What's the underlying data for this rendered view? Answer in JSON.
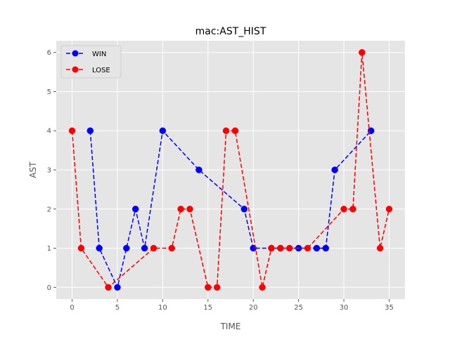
{
  "chart_data": {
    "type": "line",
    "title": "mac:AST_HIST",
    "xlabel": "TIME",
    "ylabel": "AST",
    "xlim": [
      -1.75,
      36.75
    ],
    "ylim": [
      -0.3,
      6.3
    ],
    "xticks": [
      0,
      5,
      10,
      15,
      20,
      25,
      30,
      35
    ],
    "yticks": [
      0,
      1,
      2,
      3,
      4,
      5,
      6
    ],
    "grid": true,
    "legend_position": "top-left",
    "series": [
      {
        "name": "WIN",
        "color": "#0000ff",
        "x": [
          2,
          3,
          5,
          6,
          7,
          8,
          10,
          14,
          19,
          20,
          22,
          23,
          25,
          27,
          28,
          29,
          33
        ],
        "y": [
          4,
          1,
          0,
          1,
          2,
          1,
          4,
          3,
          2,
          1,
          1,
          1,
          1,
          1,
          1,
          3,
          4
        ]
      },
      {
        "name": "LOSE",
        "color": "#ff0000",
        "x": [
          0,
          1,
          4,
          9,
          11,
          12,
          13,
          15,
          16,
          17,
          18,
          21,
          22,
          23,
          24,
          26,
          30,
          31,
          32,
          34,
          35
        ],
        "y": [
          4,
          1,
          0,
          1,
          1,
          2,
          2,
          0,
          0,
          4,
          4,
          0,
          1,
          1,
          1,
          1,
          2,
          2,
          6,
          1,
          2
        ]
      }
    ]
  }
}
